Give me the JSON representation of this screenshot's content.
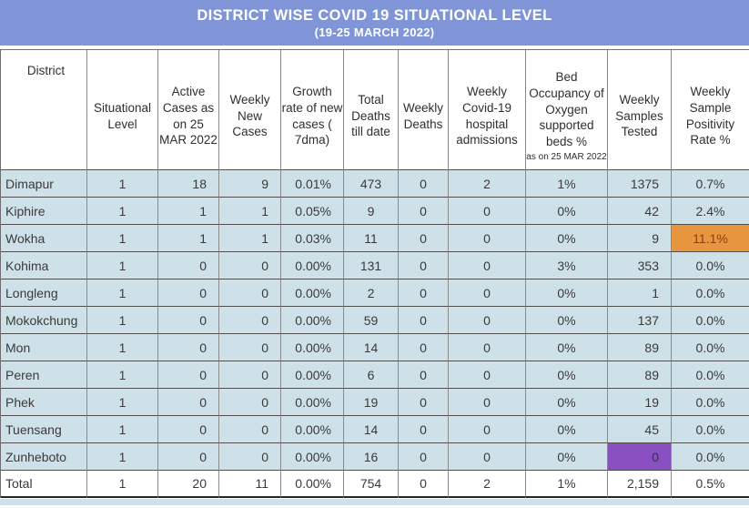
{
  "banner": {
    "title": "DISTRICT WISE COVID 19 SITUATIONAL LEVEL",
    "subtitle": "(19-25 MARCH 2022)"
  },
  "colors": {
    "banner_bg": "#8095d8",
    "row_bg": "#cee0e8",
    "highlight_orange_bg": "#e8953f",
    "highlight_orange_text": "#8a3e12",
    "highlight_purple_bg": "#8a4fc0",
    "highlight_purple_text": "#32324a"
  },
  "table": {
    "columns": [
      {
        "label": "District",
        "align": "left"
      },
      {
        "label": "Situational Level",
        "align": "center"
      },
      {
        "label": "Active Cases as on 25 MAR 2022",
        "align": "right"
      },
      {
        "label": "Weekly New Cases",
        "align": "right"
      },
      {
        "label": "Growth rate of new cases ( 7dma)",
        "align": "right"
      },
      {
        "label": "Total Deaths till date",
        "align": "center"
      },
      {
        "label": "Weekly Deaths",
        "align": "center"
      },
      {
        "label": "Weekly Covid-19 hospital admissions",
        "align": "center"
      },
      {
        "label": "Bed Occupancy of Oxygen supported beds %",
        "note": "as on 25 MAR 2022",
        "align": "center"
      },
      {
        "label": "Weekly Samples Tested",
        "align": "right"
      },
      {
        "label": "Weekly Sample Positivity Rate %",
        "align": "center"
      }
    ],
    "rows": [
      {
        "district": "Dimapur",
        "values": [
          "1",
          "18",
          "9",
          "0.01%",
          "473",
          "0",
          "2",
          "1%",
          "1375",
          "0.7%"
        ]
      },
      {
        "district": "Kiphire",
        "values": [
          "1",
          "1",
          "1",
          "0.05%",
          "9",
          "0",
          "0",
          "0%",
          "42",
          "2.4%"
        ]
      },
      {
        "district": "Wokha",
        "values": [
          "1",
          "1",
          "1",
          "0.03%",
          "11",
          "0",
          "0",
          "0%",
          "9",
          "11.1%"
        ],
        "highlight": {
          "value_index": 9,
          "bg": "#e8953f",
          "fg": "#8a3e12"
        }
      },
      {
        "district": "Kohima",
        "values": [
          "1",
          "0",
          "0",
          "0.00%",
          "131",
          "0",
          "0",
          "3%",
          "353",
          "0.0%"
        ]
      },
      {
        "district": "Longleng",
        "values": [
          "1",
          "0",
          "0",
          "0.00%",
          "2",
          "0",
          "0",
          "0%",
          "1",
          "0.0%"
        ]
      },
      {
        "district": "Mokokchung",
        "values": [
          "1",
          "0",
          "0",
          "0.00%",
          "59",
          "0",
          "0",
          "0%",
          "137",
          "0.0%"
        ]
      },
      {
        "district": "Mon",
        "values": [
          "1",
          "0",
          "0",
          "0.00%",
          "14",
          "0",
          "0",
          "0%",
          "89",
          "0.0%"
        ]
      },
      {
        "district": "Peren",
        "values": [
          "1",
          "0",
          "0",
          "0.00%",
          "6",
          "0",
          "0",
          "0%",
          "89",
          "0.0%"
        ]
      },
      {
        "district": "Phek",
        "values": [
          "1",
          "0",
          "0",
          "0.00%",
          "19",
          "0",
          "0",
          "0%",
          "19",
          "0.0%"
        ]
      },
      {
        "district": "Tuensang",
        "values": [
          "1",
          "0",
          "0",
          "0.00%",
          "14",
          "0",
          "0",
          "0%",
          "45",
          "0.0%"
        ]
      },
      {
        "district": "Zunheboto",
        "values": [
          "1",
          "0",
          "0",
          "0.00%",
          "16",
          "0",
          "0",
          "0%",
          "0",
          "0.0%"
        ],
        "highlight": {
          "value_index": 8,
          "bg": "#8a4fc0",
          "fg": "#32324a"
        }
      }
    ],
    "total_row": {
      "district": "Total",
      "values": [
        "1",
        "20",
        "11",
        "0.00%",
        "754",
        "0",
        "2",
        "1%",
        "2,159",
        "0.5%"
      ]
    }
  }
}
